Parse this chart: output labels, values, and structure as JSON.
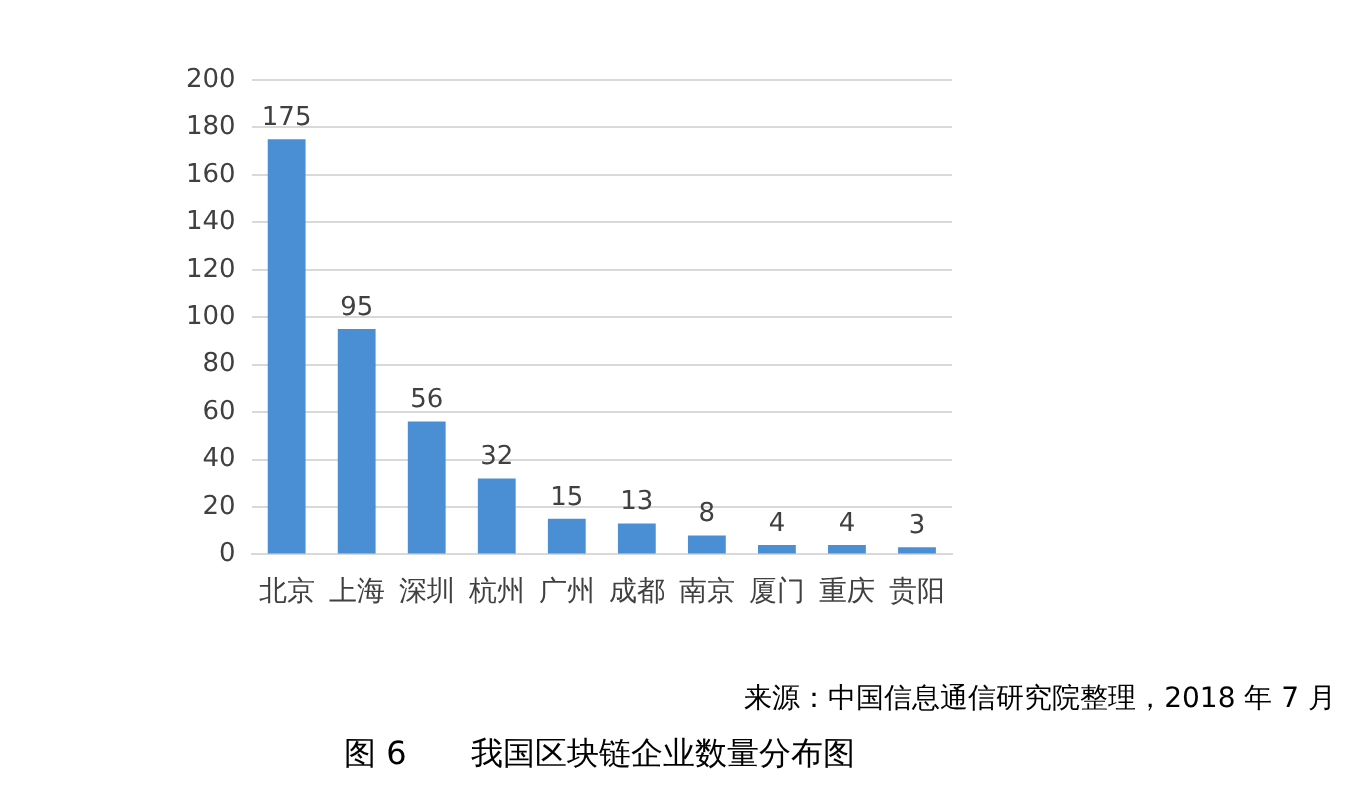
{
  "chart_data": {
    "type": "bar",
    "title": "图 6　　我国区块链企业数量分布图",
    "categories": [
      "北京",
      "上海",
      "深圳",
      "杭州",
      "广州",
      "成都",
      "南京",
      "厦门",
      "重庆",
      "贵阳"
    ],
    "values": [
      175,
      95,
      56,
      32,
      15,
      13,
      8,
      4,
      4,
      3
    ],
    "color": "#4a8fd4",
    "ylim": [
      0,
      200
    ],
    "yticks": [
      0,
      20,
      40,
      60,
      80,
      100,
      120,
      140,
      160,
      180,
      200
    ],
    "grid": "y",
    "data_labels": true,
    "legend": false,
    "annotations": [
      "来源：中国信息通信研究院整理，2018 年 7 月"
    ]
  }
}
